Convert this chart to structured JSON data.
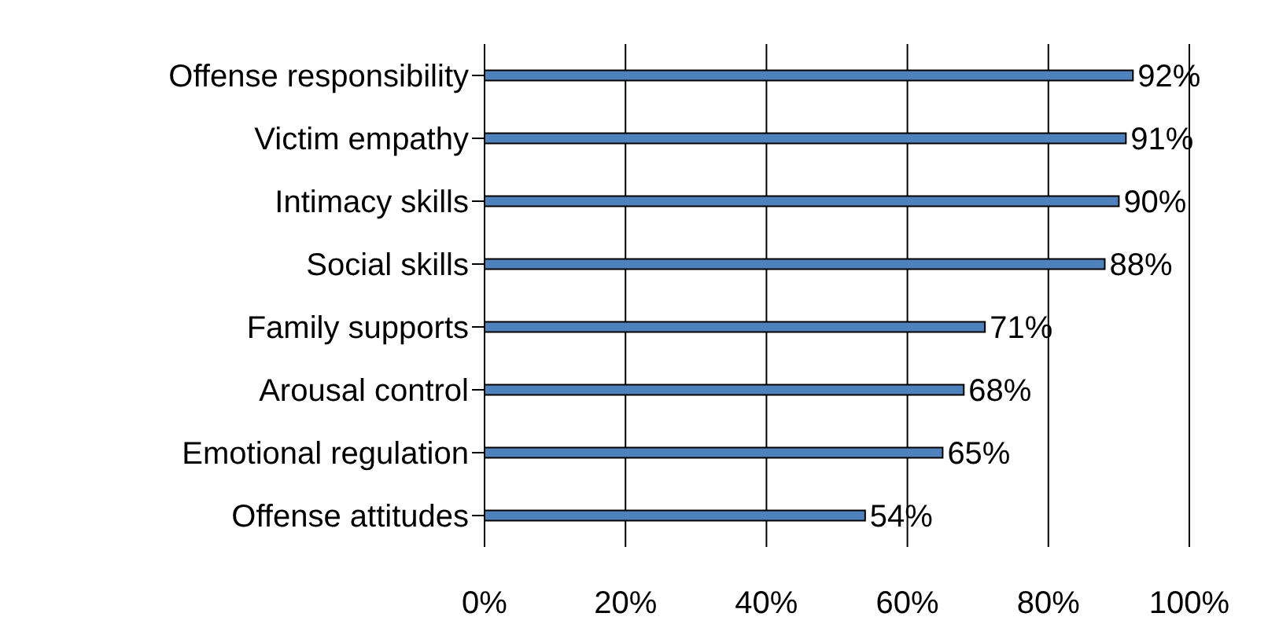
{
  "chart_data": {
    "type": "bar",
    "orientation": "horizontal",
    "categories": [
      "Offense responsibility",
      "Victim empathy",
      "Intimacy skills",
      "Social skills",
      "Family supports",
      "Arousal control",
      "Emotional regulation",
      "Offense attitudes"
    ],
    "values": [
      92,
      91,
      90,
      88,
      71,
      68,
      65,
      54
    ],
    "value_labels": [
      "92%",
      "91%",
      "90%",
      "88%",
      "71%",
      "68%",
      "65%",
      "54%"
    ],
    "color": "#4f81bd",
    "xlim": [
      0,
      100
    ],
    "xticks": [
      {
        "value": 0,
        "label": "0%"
      },
      {
        "value": 20,
        "label": "20%"
      },
      {
        "value": 40,
        "label": "40%"
      },
      {
        "value": 60,
        "label": "60%"
      },
      {
        "value": 80,
        "label": "80%"
      },
      {
        "value": 100,
        "label": "100%"
      }
    ],
    "grid": "x",
    "legend": false
  }
}
